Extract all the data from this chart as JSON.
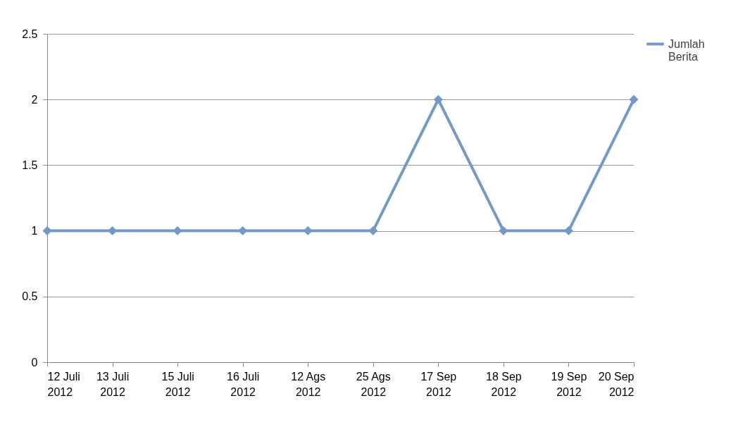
{
  "chart_data": {
    "type": "line",
    "categories": [
      "12 Juli 2012",
      "13 Juli 2012",
      "15 Juli 2012",
      "16 Juli 2012",
      "12 Ags 2012",
      "25 Ags 2012",
      "17 Sep 2012",
      "18 Sep 2012",
      "19 Sep 2012",
      "20 Sep 2012"
    ],
    "series": [
      {
        "name": "Jumlah Berita",
        "color": "#7399c6",
        "values": [
          1,
          1,
          1,
          1,
          1,
          1,
          2,
          1,
          1,
          2
        ]
      }
    ],
    "ylim": [
      0,
      2.5
    ],
    "yticks": [
      0,
      0.5,
      1,
      1.5,
      2,
      2.5
    ],
    "grid": "y",
    "legend": "right",
    "marker": "diamond",
    "line_style": "solid"
  }
}
